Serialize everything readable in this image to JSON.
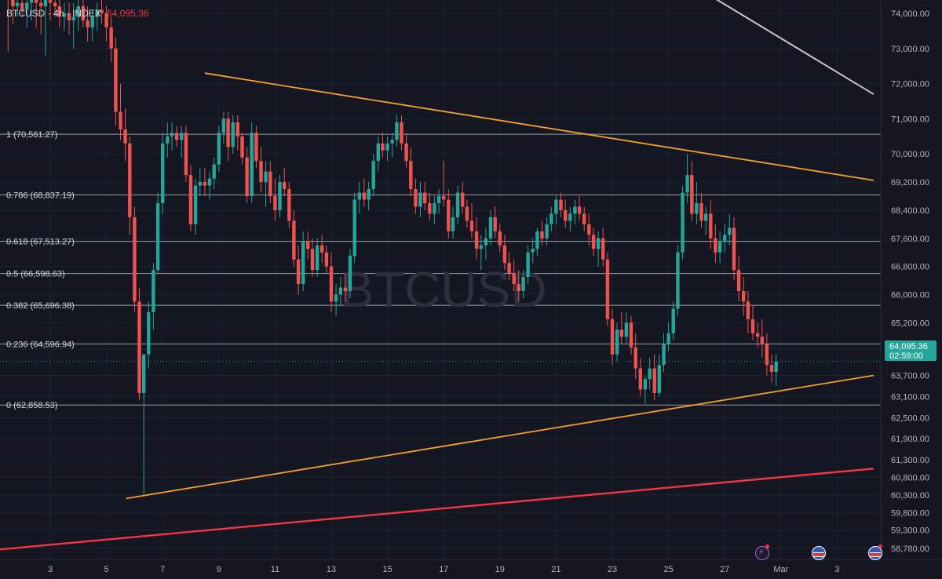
{
  "header": {
    "symbol": "BTCUSD",
    "sep1": "·",
    "interval": "4h",
    "sep2": "·",
    "source": "INDEX",
    "last_price": "64,095.36"
  },
  "watermark": "BTCUSD",
  "last_price_tag": {
    "price": "64,095.36",
    "countdown": "02:59:00",
    "value": 64095.36
  },
  "colors": {
    "background": "#141722",
    "up": "#26a69a",
    "down": "#ef5350",
    "trendline": "#f0a030",
    "support": "#f23645",
    "resistance": "#c8c8c8",
    "fib": "#9aa0a6",
    "price_tag": "#26a69a"
  },
  "chart_data": {
    "type": "candlestick",
    "title": "BTCUSD · 4h · INDEX",
    "ylim": [
      58500,
      74400
    ],
    "y_ticks": [
      74000,
      73000,
      72000,
      71000,
      70000,
      69200,
      68400,
      67600,
      66800,
      66000,
      65200,
      64450,
      63700,
      63100,
      62500,
      61900,
      61300,
      60800,
      60300,
      59800,
      59300,
      58780
    ],
    "y_tick_labels": [
      "74,000.00",
      "73,000.00",
      "72,000.00",
      "71,000.00",
      "70,000.00",
      "69,200.00",
      "68,400.00",
      "67,600.00",
      "66,800.00",
      "66,000.00",
      "65,200.00",
      "64,450.00",
      "63,700.00",
      "63,100.00",
      "62,500.00",
      "61,900.00",
      "61,300.00",
      "60,800.00",
      "60,300.00",
      "59,800.00",
      "59,300.00",
      "58,780.00"
    ],
    "x_ticks": [
      "3",
      "5",
      "7",
      "9",
      "11",
      "13",
      "15",
      "17",
      "19",
      "21",
      "23",
      "25",
      "27",
      "Mar",
      "3"
    ],
    "x_tick_day": [
      3,
      5,
      7,
      9,
      11,
      13,
      15,
      17,
      19,
      21,
      23,
      25,
      27,
      29,
      31
    ],
    "fib_levels": [
      {
        "label": "1 (70,561.27)",
        "value": 70561.27
      },
      {
        "label": "0.786 (68,837.19)",
        "value": 68837.19
      },
      {
        "label": "0.618 (67,513.27)",
        "value": 67513.27
      },
      {
        "label": "0.5 (66,598.63)",
        "value": 66598.63
      },
      {
        "label": "0.382 (65,696.38)",
        "value": 65696.38
      },
      {
        "label": "0.236 (64,596.94)",
        "value": 64596.94
      },
      {
        "label": "0 (62,858.53)",
        "value": 62858.53
      }
    ],
    "trendlines": [
      {
        "name": "triangle-top",
        "color": "#f0a030",
        "from": [
          8.5,
          72300
        ],
        "to": [
          32.3,
          69250
        ]
      },
      {
        "name": "triangle-bottom",
        "color": "#f0a030",
        "from": [
          5.7,
          60200
        ],
        "to": [
          32.3,
          63700
        ]
      },
      {
        "name": "support",
        "color": "#f23645",
        "from": [
          1.2,
          58750
        ],
        "to": [
          32.3,
          61050
        ]
      },
      {
        "name": "resistance",
        "color": "#c8c8c8",
        "from": [
          26.7,
          74400
        ],
        "to": [
          32.3,
          71700
        ]
      }
    ],
    "candles": [
      [
        1.5,
        74800,
        75500,
        72900,
        74400
      ],
      [
        1.67,
        74400,
        74700,
        73700,
        74200
      ],
      [
        1.83,
        74200,
        74500,
        73900,
        74300
      ],
      [
        2.0,
        74300,
        74600,
        73900,
        74100
      ],
      [
        2.17,
        74100,
        74500,
        73600,
        74300
      ],
      [
        2.33,
        74300,
        74900,
        73800,
        74600
      ],
      [
        2.5,
        74600,
        74900,
        73600,
        74300
      ],
      [
        2.67,
        74300,
        74700,
        73400,
        74200
      ],
      [
        2.83,
        74200,
        74700,
        72800,
        74500
      ],
      [
        3.0,
        74500,
        74800,
        73800,
        74300
      ],
      [
        3.17,
        74300,
        74600,
        73900,
        74200
      ],
      [
        3.33,
        74200,
        74400,
        73600,
        73900
      ],
      [
        3.5,
        73900,
        74300,
        73500,
        74000
      ],
      [
        3.67,
        74000,
        74300,
        73400,
        73800
      ],
      [
        3.83,
        73800,
        74300,
        73000,
        73900
      ],
      [
        4.0,
        73900,
        74500,
        73500,
        74200
      ],
      [
        4.17,
        74200,
        74500,
        73600,
        73800
      ],
      [
        4.33,
        73800,
        74200,
        73200,
        73600
      ],
      [
        4.5,
        73600,
        74100,
        73200,
        73900
      ],
      [
        4.67,
        73900,
        74300,
        73500,
        74100
      ],
      [
        4.83,
        74100,
        74700,
        73700,
        74000
      ],
      [
        5.0,
        74000,
        74200,
        73200,
        73600
      ],
      [
        5.17,
        73600,
        73900,
        72600,
        73000
      ],
      [
        5.33,
        73000,
        73300,
        70800,
        71200
      ],
      [
        5.5,
        71200,
        72000,
        70400,
        70700
      ],
      [
        5.67,
        70700,
        71300,
        69800,
        70300
      ],
      [
        5.83,
        70300,
        70500,
        67700,
        68200
      ],
      [
        6.0,
        68200,
        68500,
        65500,
        65800
      ],
      [
        6.17,
        65800,
        66200,
        63000,
        63200
      ],
      [
        6.33,
        63200,
        64200,
        60300,
        64300
      ],
      [
        6.5,
        64300,
        65800,
        63900,
        65500
      ],
      [
        6.67,
        65500,
        66900,
        65000,
        66700
      ],
      [
        6.83,
        66700,
        68900,
        66600,
        68600
      ],
      [
        7.0,
        68600,
        70600,
        68300,
        70300
      ],
      [
        7.17,
        70300,
        70900,
        69900,
        70500
      ],
      [
        7.33,
        70500,
        70900,
        70100,
        70600
      ],
      [
        7.5,
        70600,
        70800,
        70200,
        70400
      ],
      [
        7.67,
        70400,
        70800,
        69900,
        70600
      ],
      [
        7.83,
        70600,
        70800,
        69200,
        69400
      ],
      [
        8.0,
        69400,
        69700,
        67800,
        68000
      ],
      [
        8.17,
        68000,
        69300,
        67700,
        69100
      ],
      [
        8.33,
        69100,
        69600,
        68800,
        69200
      ],
      [
        8.5,
        69200,
        69600,
        68800,
        69100
      ],
      [
        8.67,
        69100,
        69500,
        68700,
        69300
      ],
      [
        8.83,
        69300,
        69900,
        69000,
        69700
      ],
      [
        9.0,
        69700,
        70800,
        69500,
        70600
      ],
      [
        9.17,
        70600,
        71200,
        70300,
        71000
      ],
      [
        9.33,
        71000,
        71200,
        69800,
        70200
      ],
      [
        9.5,
        70200,
        71100,
        70000,
        70900
      ],
      [
        9.67,
        70900,
        71100,
        70100,
        70500
      ],
      [
        9.83,
        70500,
        70600,
        69700,
        69900
      ],
      [
        10.0,
        69900,
        70200,
        68600,
        68800
      ],
      [
        10.17,
        68800,
        70900,
        68600,
        70600
      ],
      [
        10.33,
        70600,
        70800,
        69600,
        69800
      ],
      [
        10.5,
        69800,
        70200,
        68900,
        69200
      ],
      [
        10.67,
        69200,
        69800,
        68500,
        69500
      ],
      [
        10.83,
        69500,
        69800,
        68600,
        68800
      ],
      [
        11.0,
        68800,
        69300,
        68100,
        68400
      ],
      [
        11.17,
        68400,
        69400,
        68200,
        69200
      ],
      [
        11.33,
        69200,
        69600,
        68800,
        69000
      ],
      [
        11.5,
        69000,
        69200,
        67900,
        68100
      ],
      [
        11.67,
        68100,
        68400,
        66800,
        67000
      ],
      [
        11.83,
        67000,
        67400,
        66000,
        66300
      ],
      [
        12.0,
        66300,
        67800,
        66100,
        67500
      ],
      [
        12.17,
        67500,
        67800,
        67000,
        67300
      ],
      [
        12.33,
        67300,
        67600,
        66500,
        66700
      ],
      [
        12.5,
        66700,
        67600,
        66500,
        67400
      ],
      [
        12.67,
        67400,
        67700,
        66900,
        67200
      ],
      [
        12.83,
        67200,
        67400,
        66600,
        66800
      ],
      [
        13.0,
        66800,
        67200,
        65500,
        65800
      ],
      [
        13.17,
        65800,
        66300,
        65400,
        66000
      ],
      [
        13.33,
        66000,
        66500,
        65700,
        66200
      ],
      [
        13.5,
        66200,
        66600,
        65800,
        66100
      ],
      [
        13.67,
        66100,
        67300,
        65900,
        67100
      ],
      [
        13.83,
        67100,
        68900,
        66900,
        68700
      ],
      [
        14.0,
        68700,
        69200,
        68300,
        68900
      ],
      [
        14.17,
        68900,
        69300,
        68500,
        68700
      ],
      [
        14.33,
        68700,
        69200,
        68400,
        69000
      ],
      [
        14.5,
        69000,
        70000,
        68800,
        69800
      ],
      [
        14.67,
        69800,
        70500,
        69500,
        70300
      ],
      [
        14.83,
        70300,
        70600,
        69900,
        70100
      ],
      [
        15.0,
        70100,
        70500,
        69800,
        70300
      ],
      [
        15.17,
        70300,
        70600,
        69900,
        70400
      ],
      [
        15.33,
        70400,
        71100,
        70200,
        70900
      ],
      [
        15.5,
        70900,
        71100,
        70100,
        70300
      ],
      [
        15.67,
        70300,
        70600,
        69600,
        69800
      ],
      [
        15.83,
        69800,
        70200,
        68800,
        69000
      ],
      [
        16.0,
        69000,
        69300,
        68300,
        68500
      ],
      [
        16.17,
        68500,
        69200,
        68200,
        68900
      ],
      [
        16.33,
        68900,
        69200,
        68400,
        68600
      ],
      [
        16.5,
        68600,
        68900,
        68100,
        68300
      ],
      [
        16.67,
        68300,
        68800,
        68000,
        68600
      ],
      [
        16.83,
        68600,
        69000,
        68300,
        68800
      ],
      [
        17.0,
        68800,
        69800,
        68500,
        68700
      ],
      [
        17.17,
        68700,
        69000,
        67600,
        67800
      ],
      [
        17.33,
        67800,
        68500,
        67600,
        68200
      ],
      [
        17.5,
        68200,
        69100,
        68000,
        68900
      ],
      [
        17.67,
        68900,
        69200,
        68300,
        68500
      ],
      [
        17.83,
        68500,
        68700,
        67900,
        68100
      ],
      [
        18.0,
        68100,
        68600,
        67600,
        67800
      ],
      [
        18.17,
        67800,
        68200,
        67000,
        67300
      ],
      [
        18.33,
        67300,
        67700,
        66700,
        67400
      ],
      [
        18.5,
        67400,
        67900,
        67000,
        67600
      ],
      [
        18.67,
        67600,
        68400,
        67400,
        68200
      ],
      [
        18.83,
        68200,
        68500,
        67600,
        67800
      ],
      [
        19.0,
        67800,
        68000,
        67200,
        67400
      ],
      [
        19.17,
        67400,
        67700,
        66700,
        66900
      ],
      [
        19.33,
        66900,
        67200,
        66400,
        66600
      ],
      [
        19.5,
        66600,
        67000,
        66100,
        66300
      ],
      [
        19.67,
        66300,
        66700,
        65800,
        66100
      ],
      [
        19.83,
        66100,
        66700,
        65900,
        66500
      ],
      [
        20.0,
        66500,
        67400,
        66300,
        67200
      ],
      [
        20.17,
        67200,
        67600,
        66900,
        67300
      ],
      [
        20.33,
        67300,
        67900,
        67100,
        67800
      ],
      [
        20.5,
        67800,
        68100,
        67400,
        67600
      ],
      [
        20.67,
        67600,
        68200,
        67400,
        68000
      ],
      [
        20.83,
        68000,
        68500,
        67800,
        68300
      ],
      [
        21.0,
        68300,
        68800,
        68000,
        68700
      ],
      [
        21.17,
        68700,
        68900,
        68200,
        68400
      ],
      [
        21.33,
        68400,
        68700,
        67900,
        68100
      ],
      [
        21.5,
        68100,
        68500,
        67800,
        68300
      ],
      [
        21.67,
        68300,
        68700,
        68000,
        68500
      ],
      [
        21.83,
        68500,
        68800,
        68100,
        68300
      ],
      [
        22.0,
        68300,
        68500,
        67800,
        68000
      ],
      [
        22.17,
        68000,
        68300,
        67400,
        67700
      ],
      [
        22.33,
        67700,
        67900,
        67100,
        67300
      ],
      [
        22.5,
        67300,
        67800,
        66800,
        67600
      ],
      [
        22.67,
        67600,
        67900,
        66800,
        67000
      ],
      [
        22.83,
        67000,
        67200,
        65100,
        65300
      ],
      [
        23.0,
        65300,
        65600,
        64000,
        64300
      ],
      [
        23.17,
        64300,
        65200,
        64100,
        65000
      ],
      [
        23.33,
        65000,
        65500,
        64600,
        64800
      ],
      [
        23.5,
        64800,
        65500,
        64600,
        65200
      ],
      [
        23.67,
        65200,
        65400,
        64300,
        64500
      ],
      [
        23.83,
        64500,
        64900,
        63600,
        63900
      ],
      [
        24.0,
        63900,
        64200,
        63100,
        63300
      ],
      [
        24.17,
        63300,
        63700,
        62900,
        63600
      ],
      [
        24.33,
        63600,
        64200,
        63300,
        63900
      ],
      [
        24.5,
        63900,
        64300,
        63000,
        63200
      ],
      [
        24.67,
        63200,
        64300,
        63100,
        64000
      ],
      [
        24.83,
        64000,
        64900,
        63800,
        64600
      ],
      [
        25.0,
        64600,
        65200,
        64400,
        64900
      ],
      [
        25.17,
        64900,
        65800,
        64700,
        65600
      ],
      [
        25.33,
        65600,
        67400,
        65400,
        67200
      ],
      [
        25.5,
        67200,
        69100,
        67000,
        68900
      ],
      [
        25.67,
        68900,
        70000,
        68600,
        69400
      ],
      [
        25.83,
        69400,
        69800,
        68100,
        68300
      ],
      [
        26.0,
        68300,
        69200,
        68000,
        68600
      ],
      [
        26.17,
        68600,
        68900,
        67900,
        68100
      ],
      [
        26.33,
        68100,
        68500,
        67700,
        68300
      ],
      [
        26.5,
        68300,
        68700,
        67300,
        67600
      ],
      [
        26.67,
        67600,
        68000,
        66900,
        67200
      ],
      [
        26.83,
        67200,
        67800,
        66900,
        67500
      ],
      [
        27.0,
        67500,
        68000,
        67200,
        67700
      ],
      [
        27.17,
        67700,
        68300,
        67400,
        67900
      ],
      [
        27.33,
        67900,
        68200,
        66400,
        66700
      ],
      [
        27.5,
        66700,
        67100,
        65800,
        66100
      ],
      [
        27.67,
        66100,
        66500,
        65400,
        65800
      ],
      [
        27.83,
        65800,
        66100,
        64900,
        65300
      ],
      [
        28.0,
        65300,
        65700,
        64700,
        64900
      ],
      [
        28.17,
        64900,
        65200,
        64500,
        64800
      ],
      [
        28.33,
        64800,
        65300,
        64200,
        64600
      ],
      [
        28.5,
        64600,
        64900,
        63700,
        64000
      ],
      [
        28.67,
        64000,
        64300,
        63500,
        63800
      ],
      [
        28.83,
        63800,
        64300,
        63400,
        64100
      ]
    ],
    "grid": true
  }
}
